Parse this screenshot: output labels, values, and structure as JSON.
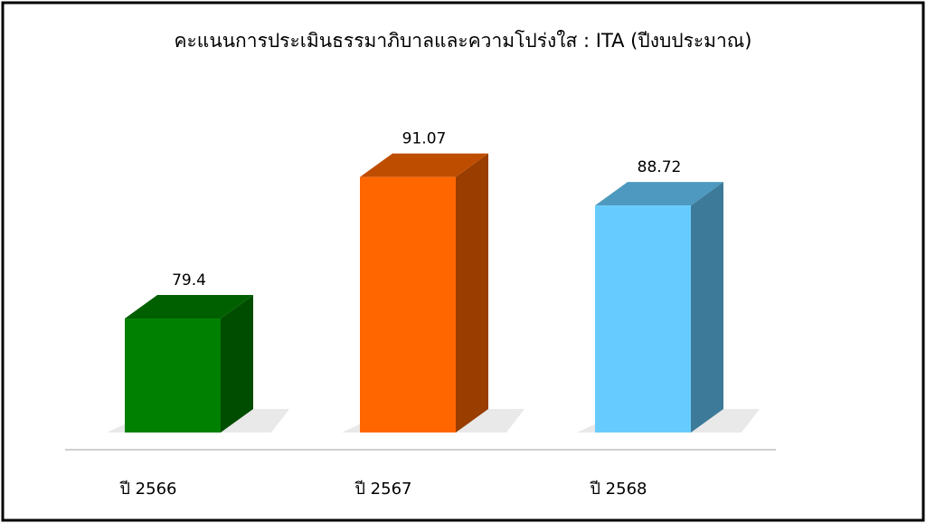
{
  "chart_data": {
    "type": "bar3d",
    "title": "คะแนนการประเมินธรรมาภิบาลและความโปร่งใส : ITA (ปีงบประมาณ)",
    "categories": [
      "ปี 2566",
      "ปี 2567",
      "ปี 2568"
    ],
    "values": [
      79.4,
      91.07,
      88.72
    ],
    "colors": [
      "#008000",
      "#ff6600",
      "#66ccff"
    ],
    "ylim": [
      70,
      95
    ]
  }
}
